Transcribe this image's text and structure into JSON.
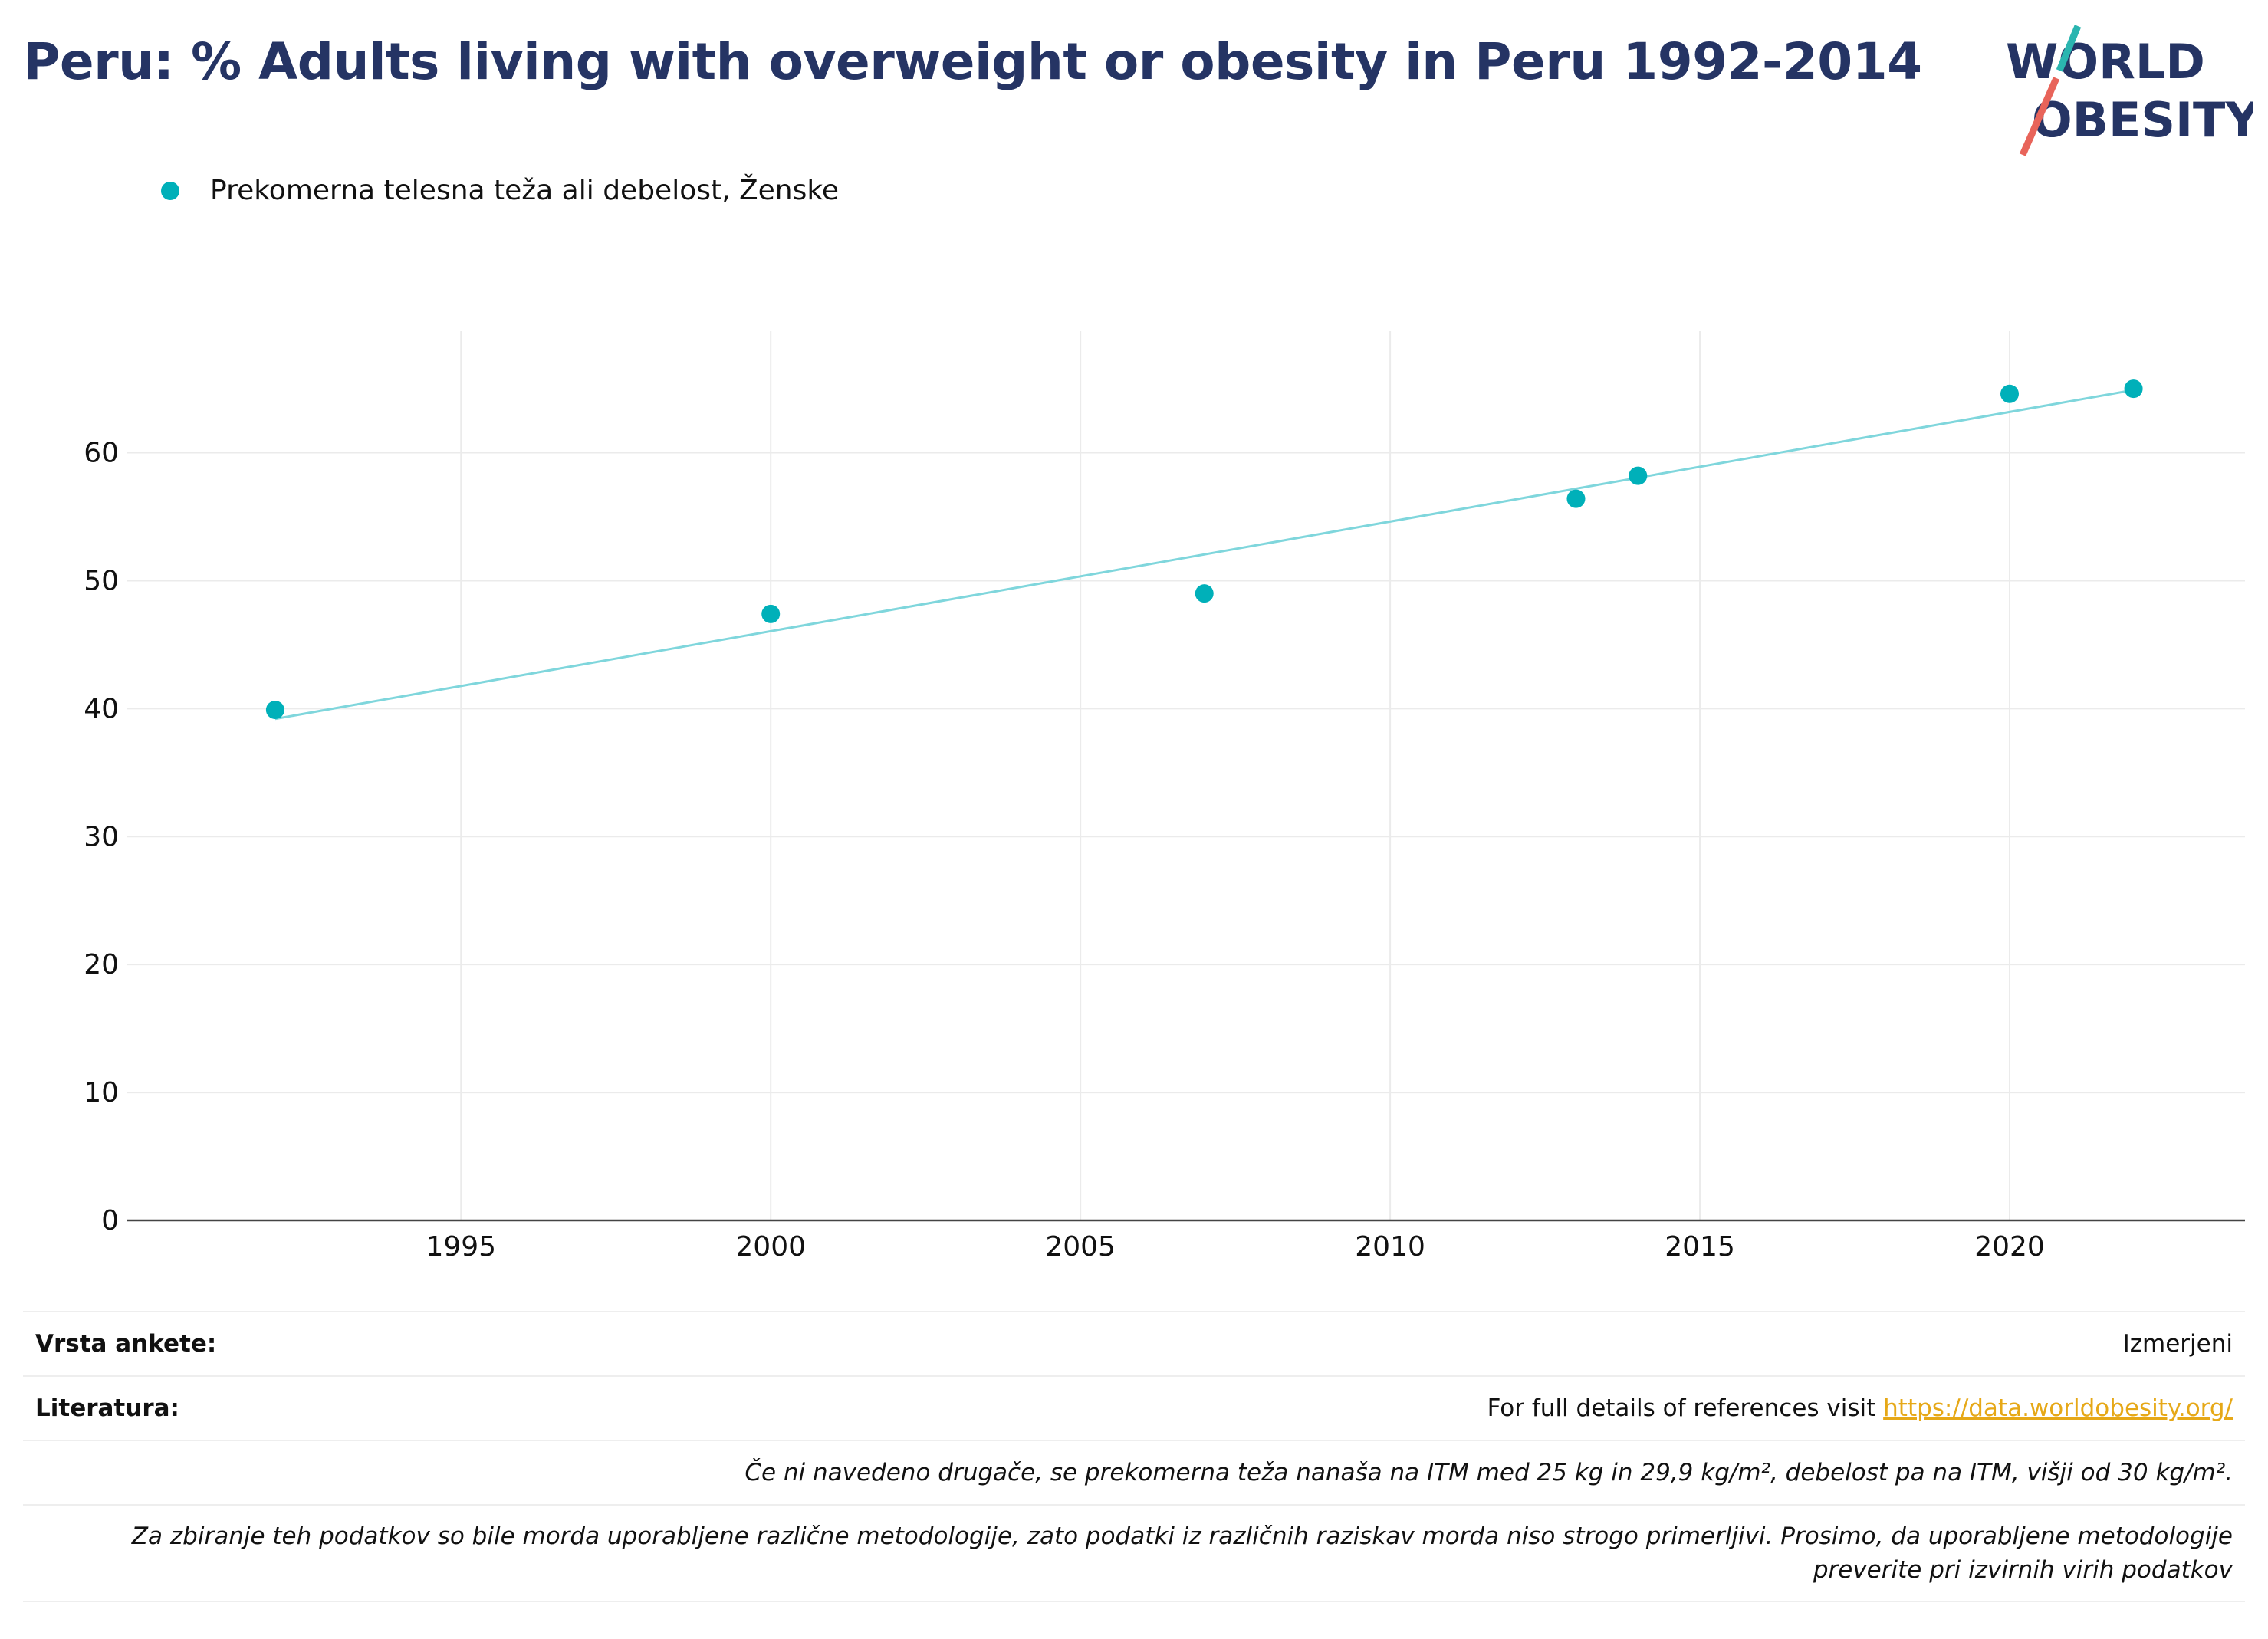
{
  "title": "Peru: % Adults living with overweight or obesity in Peru 1992-2014",
  "logo": {
    "line1": "WORLD",
    "line2": "OBESITY",
    "accent_teal": "#2bb5b0",
    "accent_red": "#e8645a",
    "text_color": "#253464"
  },
  "legend": {
    "label": "Prekomerna telesna teža ali debelost, Ženske",
    "color": "#00b0b9"
  },
  "chart_data": {
    "type": "scatter",
    "title": "Peru: % Adults living with overweight or obesity in Peru 1992-2014",
    "xlabel": "",
    "ylabel": "",
    "xlim": [
      1989.6,
      2023.8
    ],
    "ylim": [
      0,
      69.5
    ],
    "x_ticks": [
      1995,
      2000,
      2005,
      2010,
      2015,
      2020
    ],
    "y_ticks": [
      0,
      10,
      20,
      30,
      40,
      50,
      60
    ],
    "grid": true,
    "legend_position": "top-left",
    "series": [
      {
        "name": "Prekomerna telesna teža ali debelost, Ženske",
        "color": "#00b0b9",
        "x": [
          1992,
          2000,
          2007,
          2013,
          2014,
          2020,
          2022
        ],
        "y": [
          39.9,
          47.4,
          49.0,
          56.4,
          58.2,
          64.6,
          65.0
        ]
      }
    ],
    "trendline": {
      "color": "#7fd6dc",
      "x": [
        1992,
        2022
      ],
      "y": [
        39.2,
        64.9
      ]
    }
  },
  "footer": {
    "survey_type_label": "Vrsta ankete:",
    "survey_type_value": "Izmerjeni",
    "references_label": "Literatura:",
    "references_text": "For full details of references visit ",
    "references_link": "https://data.worldobesity.org/",
    "note1": "Če ni navedeno drugače, se prekomerna teža nanaša na ITM med 25 kg in 29,9 kg/m², debelost pa na ITM, višji od 30 kg/m².",
    "note2_line1": "Za zbiranje teh podatkov so bile morda uporabljene različne metodologije, zato podatki iz različnih raziskav morda niso strogo primerljivi. Prosimo, da uporabljene metodologije",
    "note2_line2": "preverite pri izvirnih virih podatkov"
  }
}
